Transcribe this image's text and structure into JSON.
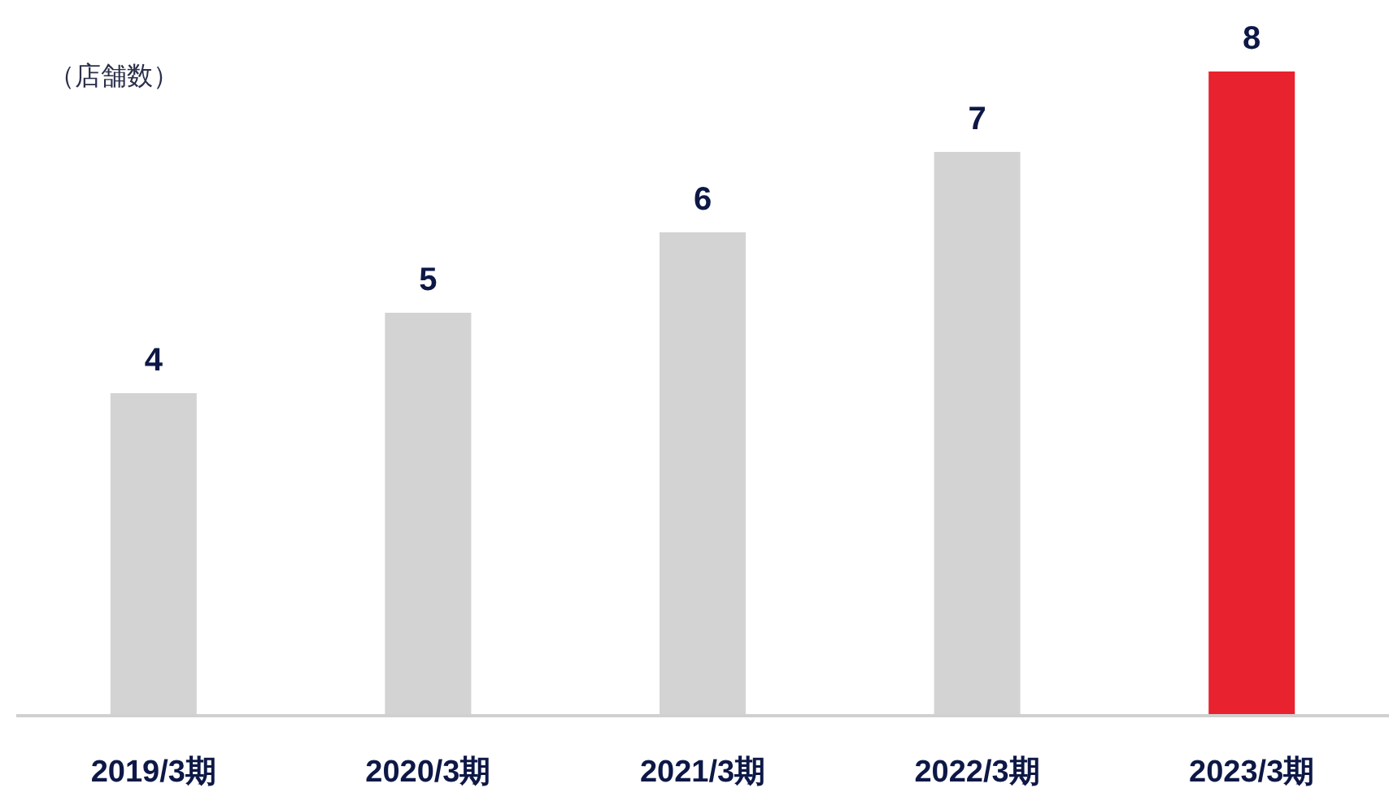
{
  "chart_data": {
    "type": "bar",
    "ylabel": "（店舗数）",
    "categories": [
      "2019/3期",
      "2020/3期",
      "2021/3期",
      "2022/3期",
      "2023/3期"
    ],
    "values": [
      4,
      5,
      6,
      7,
      8
    ],
    "colors": [
      "#d3d3d3",
      "#d3d3d3",
      "#d3d3d3",
      "#d3d3d3",
      "#e8222e"
    ],
    "data_labels": true
  }
}
